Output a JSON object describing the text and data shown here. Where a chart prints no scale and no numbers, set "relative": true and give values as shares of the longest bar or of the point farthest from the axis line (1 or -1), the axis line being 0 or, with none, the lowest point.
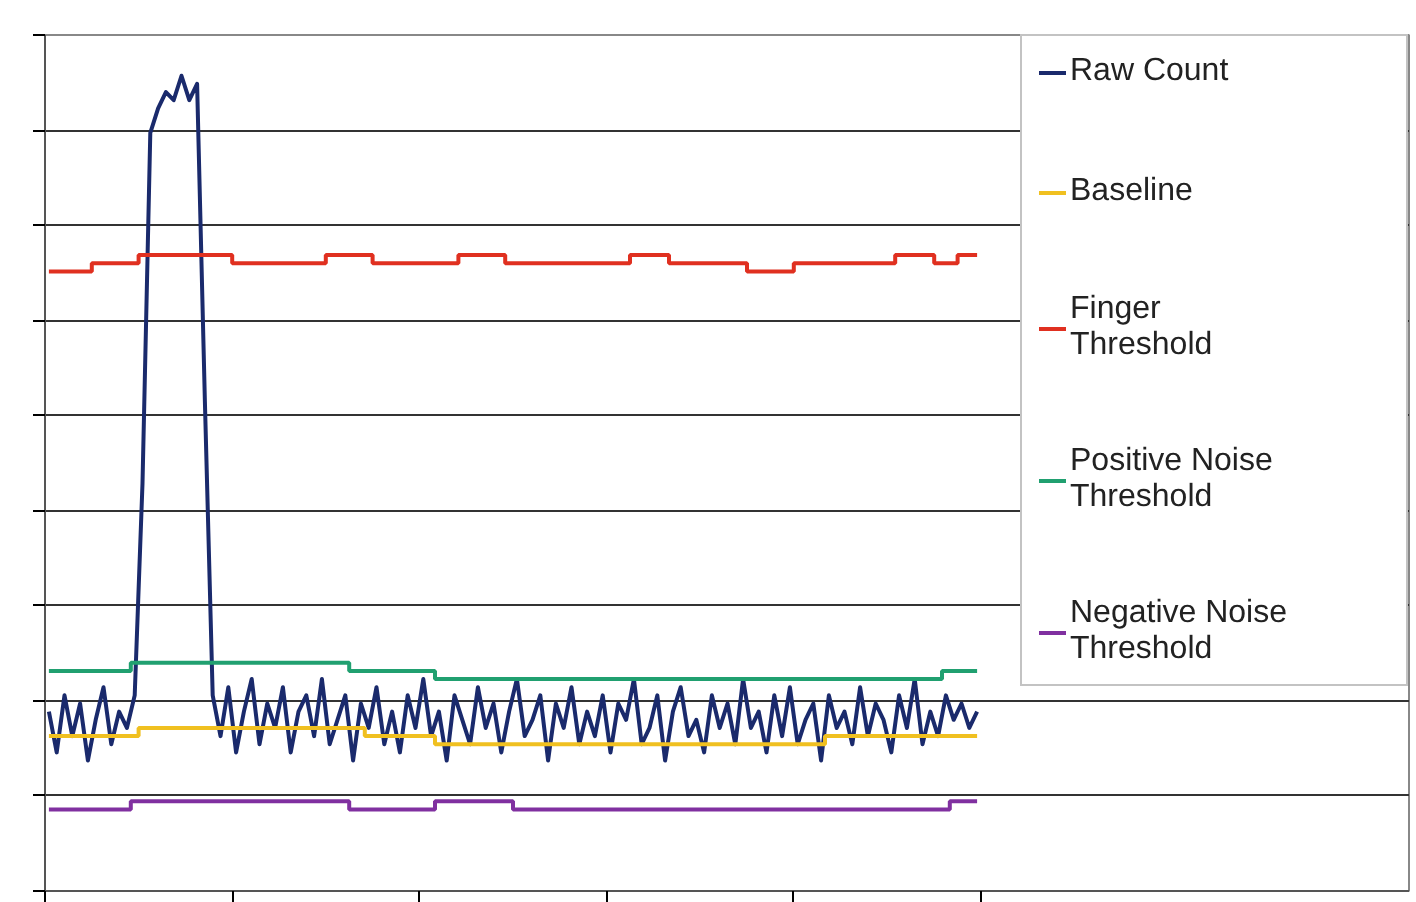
{
  "chart_data": {
    "type": "line",
    "relative": true,
    "grid": "y",
    "legend": "right",
    "tick_labels": false,
    "categories": [
      null,
      null,
      null,
      null,
      null,
      null,
      null,
      null,
      null,
      null,
      null,
      null,
      null,
      null,
      null,
      null,
      null,
      null,
      null,
      null,
      null,
      null,
      null,
      null,
      null,
      null,
      null,
      null,
      null,
      null,
      null,
      null,
      null,
      null,
      null,
      null,
      null,
      null,
      null,
      null,
      null,
      null,
      null,
      null,
      null,
      null,
      null,
      null,
      null,
      null,
      null,
      null,
      null,
      null,
      null,
      null,
      null,
      null,
      null,
      null,
      null,
      null,
      null,
      null,
      null,
      null,
      null,
      null,
      null,
      null,
      null,
      null,
      null,
      null,
      null,
      null,
      null,
      null,
      null,
      null,
      null,
      null,
      null,
      null,
      null,
      null,
      null,
      null,
      null,
      null,
      null,
      null,
      null,
      null,
      null,
      null,
      null,
      null,
      null,
      null,
      null,
      null,
      null,
      null,
      null,
      null,
      null,
      null,
      null,
      null,
      null,
      null,
      null,
      null,
      null,
      null,
      null,
      null,
      null,
      null
    ],
    "series": [
      {
        "name": "Raw Count",
        "color": "#1a2a6c",
        "values": [
          0.22,
          0.17,
          0.24,
          0.19,
          0.23,
          0.16,
          0.21,
          0.25,
          0.18,
          0.22,
          0.2,
          0.24,
          0.5,
          0.93,
          0.96,
          0.98,
          0.97,
          1.0,
          0.97,
          0.99,
          0.6,
          0.24,
          0.19,
          0.25,
          0.17,
          0.22,
          0.26,
          0.18,
          0.23,
          0.2,
          0.25,
          0.17,
          0.22,
          0.24,
          0.19,
          0.26,
          0.18,
          0.21,
          0.24,
          0.16,
          0.23,
          0.2,
          0.25,
          0.18,
          0.22,
          0.17,
          0.24,
          0.2,
          0.26,
          0.19,
          0.22,
          0.16,
          0.24,
          0.21,
          0.18,
          0.25,
          0.2,
          0.23,
          0.17,
          0.22,
          0.26,
          0.19,
          0.21,
          0.24,
          0.16,
          0.23,
          0.2,
          0.25,
          0.18,
          0.22,
          0.19,
          0.24,
          0.17,
          0.23,
          0.21,
          0.26,
          0.18,
          0.2,
          0.24,
          0.16,
          0.22,
          0.25,
          0.19,
          0.21,
          0.17,
          0.24,
          0.2,
          0.23,
          0.18,
          0.26,
          0.2,
          0.22,
          0.17,
          0.24,
          0.19,
          0.25,
          0.18,
          0.21,
          0.23,
          0.16,
          0.24,
          0.2,
          0.22,
          0.18,
          0.25,
          0.19,
          0.23,
          0.21,
          0.17,
          0.24,
          0.2,
          0.26,
          0.18,
          0.22,
          0.19,
          0.24,
          0.21,
          0.23,
          0.2,
          0.22
        ]
      },
      {
        "name": "Baseline",
        "color": "#f0c020",
        "type": "step",
        "values": [
          0.19,
          0.19,
          0.19,
          0.19,
          0.19,
          0.19,
          0.19,
          0.19,
          0.19,
          0.19,
          0.19,
          0.19,
          0.2,
          0.2,
          0.2,
          0.2,
          0.2,
          0.2,
          0.2,
          0.2,
          0.2,
          0.2,
          0.2,
          0.2,
          0.2,
          0.2,
          0.2,
          0.2,
          0.2,
          0.2,
          0.2,
          0.2,
          0.2,
          0.2,
          0.2,
          0.2,
          0.2,
          0.2,
          0.2,
          0.2,
          0.2,
          0.19,
          0.19,
          0.19,
          0.19,
          0.19,
          0.19,
          0.19,
          0.19,
          0.19,
          0.18,
          0.18,
          0.18,
          0.18,
          0.18,
          0.18,
          0.18,
          0.18,
          0.18,
          0.18,
          0.18,
          0.18,
          0.18,
          0.18,
          0.18,
          0.18,
          0.18,
          0.18,
          0.18,
          0.18,
          0.18,
          0.18,
          0.18,
          0.18,
          0.18,
          0.18,
          0.18,
          0.18,
          0.18,
          0.18,
          0.18,
          0.18,
          0.18,
          0.18,
          0.18,
          0.18,
          0.18,
          0.18,
          0.18,
          0.18,
          0.18,
          0.18,
          0.18,
          0.18,
          0.18,
          0.18,
          0.18,
          0.18,
          0.18,
          0.18,
          0.19,
          0.19,
          0.19,
          0.19,
          0.19,
          0.19,
          0.19,
          0.19,
          0.19,
          0.19,
          0.19,
          0.19,
          0.19,
          0.19,
          0.19,
          0.19,
          0.19,
          0.19,
          0.19,
          0.19
        ]
      },
      {
        "name": "Finger Threshold",
        "color": "#e03020",
        "type": "step",
        "values": [
          0.76,
          0.76,
          0.76,
          0.76,
          0.76,
          0.76,
          0.77,
          0.77,
          0.77,
          0.77,
          0.77,
          0.77,
          0.78,
          0.78,
          0.78,
          0.78,
          0.78,
          0.78,
          0.78,
          0.78,
          0.78,
          0.78,
          0.78,
          0.78,
          0.77,
          0.77,
          0.77,
          0.77,
          0.77,
          0.77,
          0.77,
          0.77,
          0.77,
          0.77,
          0.77,
          0.77,
          0.78,
          0.78,
          0.78,
          0.78,
          0.78,
          0.78,
          0.77,
          0.77,
          0.77,
          0.77,
          0.77,
          0.77,
          0.77,
          0.77,
          0.77,
          0.77,
          0.77,
          0.78,
          0.78,
          0.78,
          0.78,
          0.78,
          0.78,
          0.77,
          0.77,
          0.77,
          0.77,
          0.77,
          0.77,
          0.77,
          0.77,
          0.77,
          0.77,
          0.77,
          0.77,
          0.77,
          0.77,
          0.77,
          0.77,
          0.78,
          0.78,
          0.78,
          0.78,
          0.78,
          0.77,
          0.77,
          0.77,
          0.77,
          0.77,
          0.77,
          0.77,
          0.77,
          0.77,
          0.77,
          0.76,
          0.76,
          0.76,
          0.76,
          0.76,
          0.76,
          0.77,
          0.77,
          0.77,
          0.77,
          0.77,
          0.77,
          0.77,
          0.77,
          0.77,
          0.77,
          0.77,
          0.77,
          0.77,
          0.78,
          0.78,
          0.78,
          0.78,
          0.78,
          0.77,
          0.77,
          0.77,
          0.78,
          0.78,
          0.78
        ]
      },
      {
        "name": "Positive Noise Threshold",
        "color": "#20a070",
        "type": "step",
        "values": [
          0.27,
          0.27,
          0.27,
          0.27,
          0.27,
          0.27,
          0.27,
          0.27,
          0.27,
          0.27,
          0.27,
          0.28,
          0.28,
          0.28,
          0.28,
          0.28,
          0.28,
          0.28,
          0.28,
          0.28,
          0.28,
          0.28,
          0.28,
          0.28,
          0.28,
          0.28,
          0.28,
          0.28,
          0.28,
          0.28,
          0.28,
          0.28,
          0.28,
          0.28,
          0.28,
          0.28,
          0.28,
          0.28,
          0.28,
          0.27,
          0.27,
          0.27,
          0.27,
          0.27,
          0.27,
          0.27,
          0.27,
          0.27,
          0.27,
          0.27,
          0.26,
          0.26,
          0.26,
          0.26,
          0.26,
          0.26,
          0.26,
          0.26,
          0.26,
          0.26,
          0.26,
          0.26,
          0.26,
          0.26,
          0.26,
          0.26,
          0.26,
          0.26,
          0.26,
          0.26,
          0.26,
          0.26,
          0.26,
          0.26,
          0.26,
          0.26,
          0.26,
          0.26,
          0.26,
          0.26,
          0.26,
          0.26,
          0.26,
          0.26,
          0.26,
          0.26,
          0.26,
          0.26,
          0.26,
          0.26,
          0.26,
          0.26,
          0.26,
          0.26,
          0.26,
          0.26,
          0.26,
          0.26,
          0.26,
          0.26,
          0.26,
          0.26,
          0.26,
          0.26,
          0.26,
          0.26,
          0.26,
          0.26,
          0.26,
          0.26,
          0.26,
          0.26,
          0.26,
          0.26,
          0.26,
          0.27,
          0.27,
          0.27,
          0.27,
          0.27
        ]
      },
      {
        "name": "Negative Noise Threshold",
        "color": "#8030a0",
        "type": "step",
        "values": [
          0.1,
          0.1,
          0.1,
          0.1,
          0.1,
          0.1,
          0.1,
          0.1,
          0.1,
          0.1,
          0.1,
          0.11,
          0.11,
          0.11,
          0.11,
          0.11,
          0.11,
          0.11,
          0.11,
          0.11,
          0.11,
          0.11,
          0.11,
          0.11,
          0.11,
          0.11,
          0.11,
          0.11,
          0.11,
          0.11,
          0.11,
          0.11,
          0.11,
          0.11,
          0.11,
          0.11,
          0.11,
          0.11,
          0.11,
          0.1,
          0.1,
          0.1,
          0.1,
          0.1,
          0.1,
          0.1,
          0.1,
          0.1,
          0.1,
          0.1,
          0.11,
          0.11,
          0.11,
          0.11,
          0.11,
          0.11,
          0.11,
          0.11,
          0.11,
          0.11,
          0.1,
          0.1,
          0.1,
          0.1,
          0.1,
          0.1,
          0.1,
          0.1,
          0.1,
          0.1,
          0.1,
          0.1,
          0.1,
          0.1,
          0.1,
          0.1,
          0.1,
          0.1,
          0.1,
          0.1,
          0.1,
          0.1,
          0.1,
          0.1,
          0.1,
          0.1,
          0.1,
          0.1,
          0.1,
          0.1,
          0.1,
          0.1,
          0.1,
          0.1,
          0.1,
          0.1,
          0.1,
          0.1,
          0.1,
          0.1,
          0.1,
          0.1,
          0.1,
          0.1,
          0.1,
          0.1,
          0.1,
          0.1,
          0.1,
          0.1,
          0.1,
          0.1,
          0.1,
          0.1,
          0.1,
          0.1,
          0.11,
          0.11,
          0.11,
          0.11
        ]
      }
    ]
  }
}
